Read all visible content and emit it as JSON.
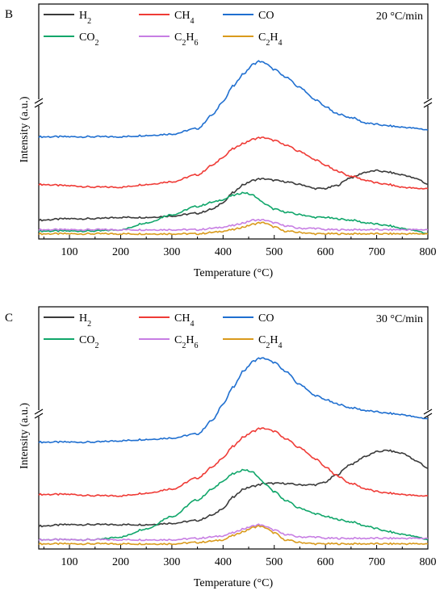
{
  "chart_data": [
    {
      "type": "line",
      "panel_label": "B",
      "annotation": "20 °C/min",
      "xlabel": "Temperature (°C)",
      "ylabel": "Intensity (a.u.)",
      "xlim": [
        40,
        800
      ],
      "x_ticks": [
        100,
        200,
        300,
        400,
        500,
        600,
        700,
        800
      ],
      "y_axis_break": true,
      "grid": false,
      "legend_position": "top-left",
      "legend_rows": [
        [
          "H_2",
          "CH_4",
          "CO"
        ],
        [
          "CO_2",
          "C_2H_6",
          "C_2H_4"
        ]
      ],
      "x": [
        40,
        100,
        150,
        200,
        250,
        300,
        350,
        380,
        400,
        420,
        440,
        460,
        470,
        480,
        500,
        520,
        550,
        580,
        600,
        620,
        650,
        680,
        700,
        720,
        750,
        780,
        800
      ],
      "series": [
        {
          "name": "H_2",
          "color": "#3a3a3a",
          "values": [
            0.12,
            0.13,
            0.13,
            0.14,
            0.14,
            0.15,
            0.17,
            0.2,
            0.25,
            0.32,
            0.38,
            0.41,
            0.42,
            0.42,
            0.41,
            0.4,
            0.38,
            0.35,
            0.35,
            0.37,
            0.43,
            0.47,
            0.48,
            0.47,
            0.45,
            0.42,
            0.38
          ]
        },
        {
          "name": "CH_4",
          "color": "#ef3b36",
          "values": [
            0.38,
            0.37,
            0.36,
            0.36,
            0.38,
            0.4,
            0.45,
            0.52,
            0.58,
            0.64,
            0.68,
            0.71,
            0.72,
            0.72,
            0.7,
            0.67,
            0.62,
            0.56,
            0.52,
            0.48,
            0.44,
            0.41,
            0.39,
            0.38,
            0.36,
            0.35,
            0.35
          ]
        },
        {
          "name": "CO",
          "color": "#1f6fd0",
          "values": [
            1.18,
            1.18,
            1.18,
            1.18,
            1.19,
            1.2,
            1.24,
            1.34,
            1.44,
            1.55,
            1.64,
            1.71,
            1.73,
            1.72,
            1.67,
            1.62,
            1.54,
            1.45,
            1.4,
            1.35,
            1.32,
            1.28,
            1.27,
            1.26,
            1.25,
            1.24,
            1.23
          ]
        },
        {
          "name": "CO_2",
          "color": "#10a66a",
          "values": [
            0.04,
            0.04,
            0.04,
            0.05,
            0.1,
            0.16,
            0.22,
            0.25,
            0.27,
            0.3,
            0.32,
            0.3,
            0.27,
            0.24,
            0.2,
            0.18,
            0.16,
            0.14,
            0.14,
            0.13,
            0.12,
            0.1,
            0.09,
            0.08,
            0.06,
            0.04,
            0.02
          ]
        },
        {
          "name": "C_2H_6",
          "color": "#c77ee3",
          "values": [
            0.05,
            0.05,
            0.05,
            0.05,
            0.05,
            0.05,
            0.05,
            0.06,
            0.07,
            0.08,
            0.1,
            0.12,
            0.12,
            0.12,
            0.1,
            0.08,
            0.06,
            0.06,
            0.05,
            0.05,
            0.05,
            0.05,
            0.05,
            0.05,
            0.05,
            0.05,
            0.05
          ]
        },
        {
          "name": "C_2H_4",
          "color": "#d99a1c",
          "values": [
            0.02,
            0.02,
            0.02,
            0.02,
            0.02,
            0.02,
            0.02,
            0.03,
            0.04,
            0.05,
            0.07,
            0.09,
            0.1,
            0.1,
            0.07,
            0.04,
            0.03,
            0.02,
            0.02,
            0.02,
            0.02,
            0.02,
            0.02,
            0.02,
            0.02,
            0.02,
            0.02
          ]
        }
      ]
    },
    {
      "type": "line",
      "panel_label": "C",
      "annotation": "30 °C/min",
      "xlabel": "Temperature (°C)",
      "ylabel": "Intensity (a.u.)",
      "xlim": [
        40,
        800
      ],
      "x_ticks": [
        100,
        200,
        300,
        400,
        500,
        600,
        700,
        800
      ],
      "y_axis_break": true,
      "grid": false,
      "legend_position": "top-left",
      "legend_rows": [
        [
          "H_2",
          "CH_4",
          "CO"
        ],
        [
          "CO_2",
          "C_2H_6",
          "C_2H_4"
        ]
      ],
      "x": [
        40,
        100,
        150,
        200,
        250,
        300,
        350,
        380,
        400,
        420,
        440,
        460,
        470,
        480,
        500,
        520,
        550,
        580,
        600,
        620,
        650,
        680,
        700,
        720,
        750,
        780,
        800
      ],
      "series": [
        {
          "name": "H_2",
          "color": "#3a3a3a",
          "values": [
            0.15,
            0.16,
            0.16,
            0.16,
            0.16,
            0.17,
            0.19,
            0.23,
            0.28,
            0.36,
            0.42,
            0.44,
            0.45,
            0.46,
            0.46,
            0.46,
            0.45,
            0.45,
            0.47,
            0.52,
            0.6,
            0.66,
            0.69,
            0.7,
            0.68,
            0.62,
            0.57
          ]
        },
        {
          "name": "CH_4",
          "color": "#ef3b36",
          "values": [
            0.38,
            0.38,
            0.37,
            0.37,
            0.39,
            0.42,
            0.5,
            0.58,
            0.65,
            0.73,
            0.8,
            0.84,
            0.86,
            0.86,
            0.84,
            0.79,
            0.72,
            0.64,
            0.58,
            0.52,
            0.46,
            0.42,
            0.4,
            0.39,
            0.38,
            0.37,
            0.37
          ]
        },
        {
          "name": "CO",
          "color": "#1f6fd0",
          "values": [
            1.22,
            1.22,
            1.22,
            1.23,
            1.24,
            1.25,
            1.28,
            1.38,
            1.5,
            1.62,
            1.74,
            1.81,
            1.83,
            1.83,
            1.8,
            1.74,
            1.64,
            1.56,
            1.53,
            1.5,
            1.47,
            1.45,
            1.44,
            1.43,
            1.42,
            1.4,
            1.39
          ]
        },
        {
          "name": "CO_2",
          "color": "#10a66a",
          "values": [
            0.05,
            0.05,
            0.05,
            0.07,
            0.13,
            0.22,
            0.34,
            0.42,
            0.48,
            0.53,
            0.56,
            0.54,
            0.5,
            0.46,
            0.4,
            0.34,
            0.28,
            0.24,
            0.22,
            0.2,
            0.18,
            0.15,
            0.13,
            0.11,
            0.09,
            0.07,
            0.05
          ]
        },
        {
          "name": "C_2H_6",
          "color": "#c77ee3",
          "values": [
            0.05,
            0.05,
            0.05,
            0.05,
            0.05,
            0.05,
            0.06,
            0.07,
            0.08,
            0.1,
            0.13,
            0.15,
            0.16,
            0.15,
            0.12,
            0.09,
            0.07,
            0.07,
            0.06,
            0.06,
            0.06,
            0.06,
            0.06,
            0.06,
            0.06,
            0.06,
            0.06
          ]
        },
        {
          "name": "C_2H_4",
          "color": "#d99a1c",
          "values": [
            0.02,
            0.02,
            0.02,
            0.02,
            0.02,
            0.02,
            0.03,
            0.04,
            0.05,
            0.08,
            0.11,
            0.14,
            0.15,
            0.14,
            0.1,
            0.05,
            0.03,
            0.02,
            0.02,
            0.02,
            0.02,
            0.02,
            0.02,
            0.02,
            0.02,
            0.02,
            0.02
          ]
        }
      ]
    }
  ]
}
